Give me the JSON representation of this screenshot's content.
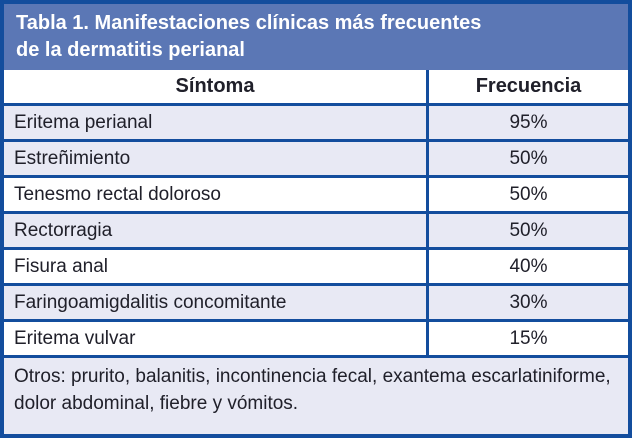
{
  "table": {
    "title_line1": "Tabla 1. Manifestaciones clínicas más frecuentes",
    "title_line2": "de la dermatitis perianal",
    "columns": [
      "Síntoma",
      "Frecuencia"
    ],
    "rows": [
      {
        "sintoma": "Eritema perianal",
        "frecuencia": "95%"
      },
      {
        "sintoma": "Estreñimiento",
        "frecuencia": "50%"
      },
      {
        "sintoma": "Tenesmo rectal doloroso",
        "frecuencia": "50%"
      },
      {
        "sintoma": "Rectorragia",
        "frecuencia": "50%"
      },
      {
        "sintoma": "Fisura anal",
        "frecuencia": "40%"
      },
      {
        "sintoma": "Faringoamigdalitis concomitante",
        "frecuencia": "30%"
      },
      {
        "sintoma": "Eritema vulvar",
        "frecuencia": "15%"
      }
    ],
    "footer": "Otros: prurito, balanitis, incontinencia fecal, exantema escarlatiniforme, dolor abdominal, fiebre y vómitos."
  },
  "colors": {
    "border": "#134d9d",
    "title_bg": "#5b77b5",
    "title_text": "#ffffff",
    "row_shaded": "#e8e9f4",
    "row_plain": "#ffffff",
    "body_text": "#20202a"
  }
}
